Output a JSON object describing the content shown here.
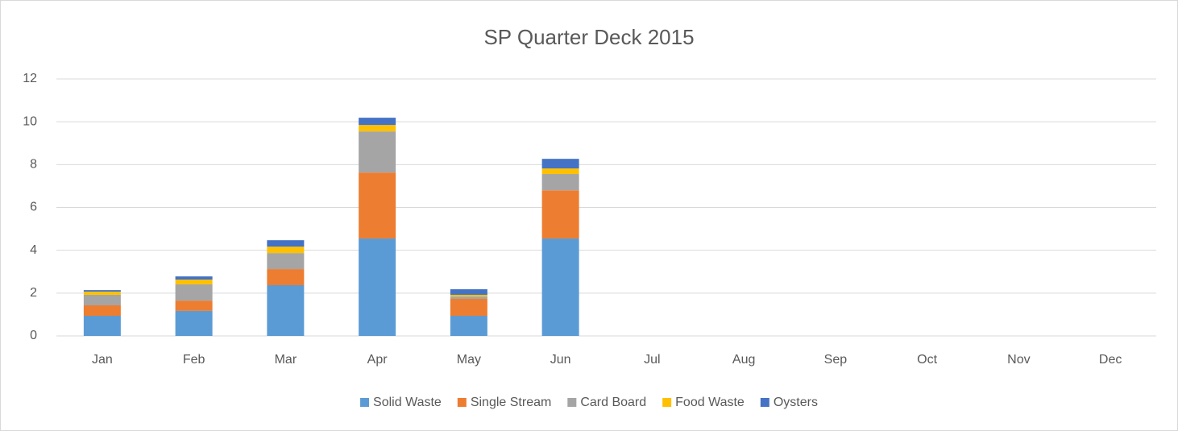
{
  "chart_data": {
    "type": "stacked_bar",
    "title": "SP Quarter Deck 2015",
    "categories": [
      "Jan",
      "Feb",
      "Mar",
      "Apr",
      "May",
      "Jun",
      "Jul",
      "Aug",
      "Sep",
      "Oct",
      "Nov",
      "Dec"
    ],
    "series": [
      {
        "name": "Solid Waste",
        "color": "#5b9bd5",
        "values": [
          0.94,
          1.17,
          2.37,
          4.55,
          0.94,
          4.55,
          null,
          null,
          null,
          null,
          null,
          null
        ]
      },
      {
        "name": "Single Stream",
        "color": "#ed7d31",
        "values": [
          0.49,
          0.48,
          0.75,
          3.08,
          0.79,
          2.25,
          null,
          null,
          null,
          null,
          null,
          null
        ]
      },
      {
        "name": "Card Board",
        "color": "#a5a5a5",
        "values": [
          0.49,
          0.76,
          0.75,
          1.92,
          0.11,
          0.76,
          null,
          null,
          null,
          null,
          null,
          null
        ]
      },
      {
        "name": "Food Waste",
        "color": "#ffc000",
        "values": [
          0.15,
          0.22,
          0.3,
          0.3,
          0.08,
          0.26,
          null,
          null,
          null,
          null,
          null,
          null
        ]
      },
      {
        "name": "Oysters",
        "color": "#4472c4",
        "values": [
          0.07,
          0.15,
          0.3,
          0.34,
          0.26,
          0.45,
          null,
          null,
          null,
          null,
          null,
          null
        ]
      }
    ],
    "ylim": [
      0,
      12
    ],
    "yticks": [
      0,
      2,
      4,
      6,
      8,
      10,
      12
    ],
    "grid": true,
    "legend": "bottom"
  }
}
